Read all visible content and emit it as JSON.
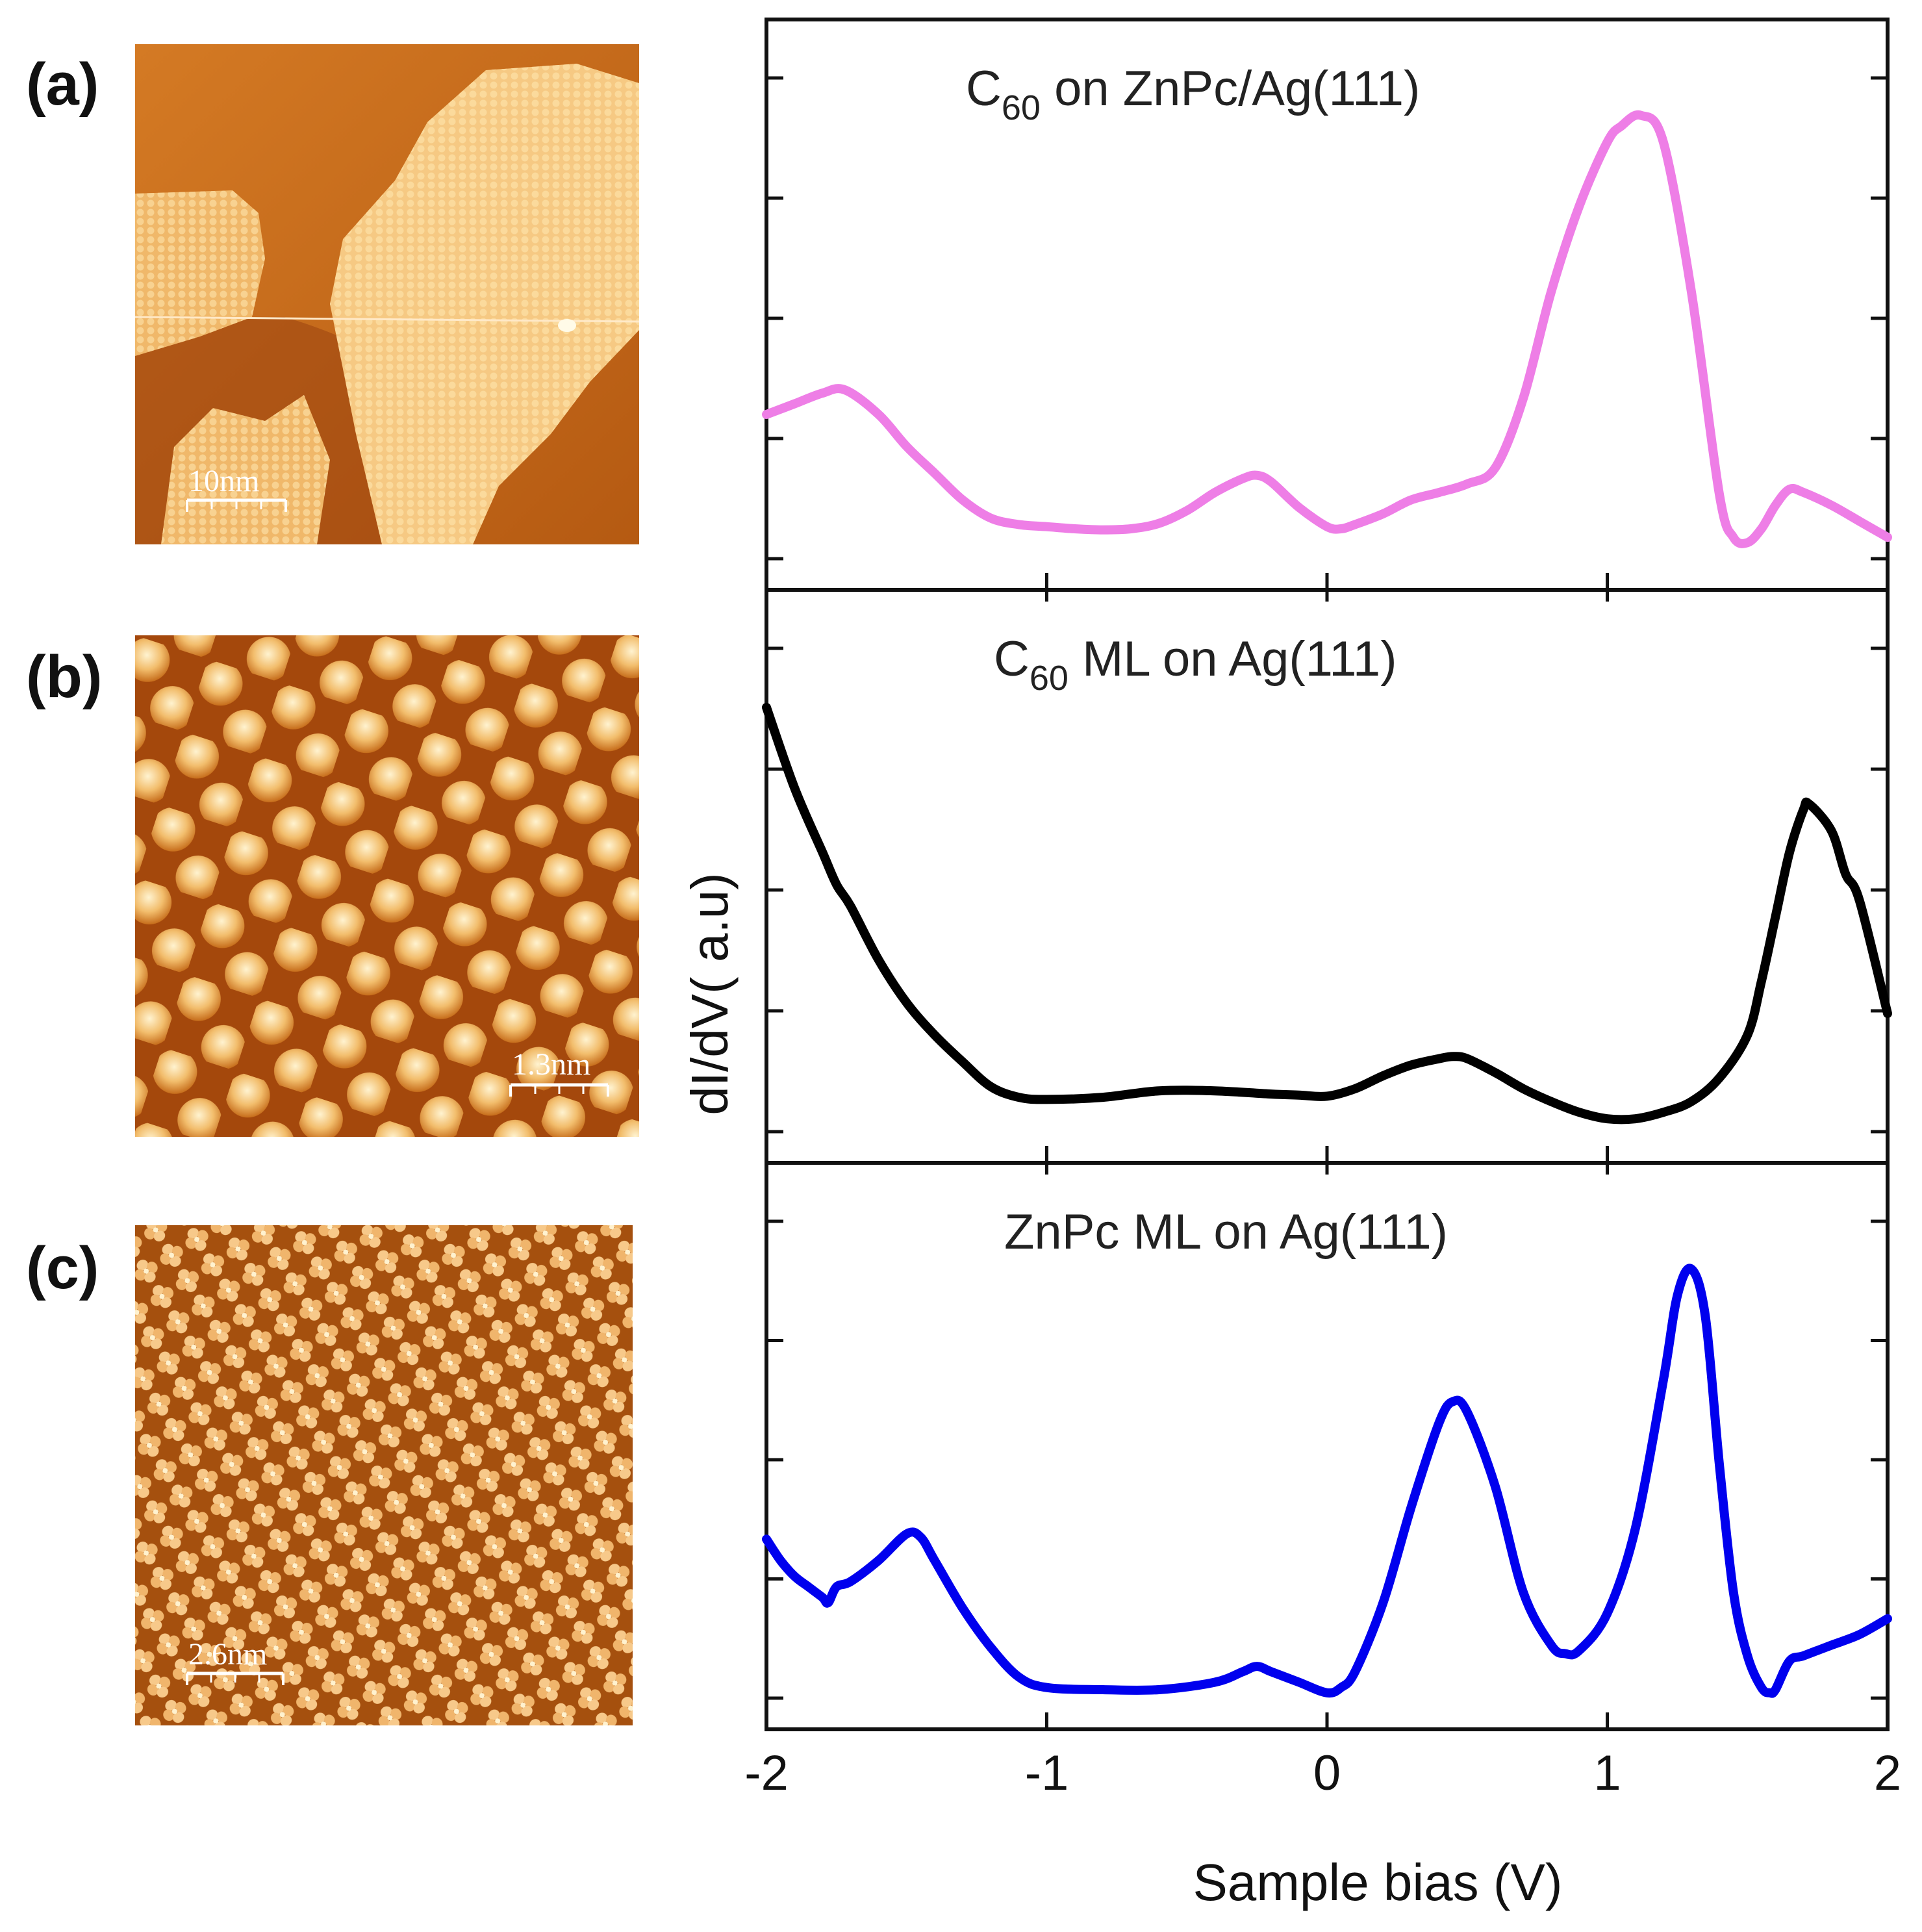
{
  "panels": [
    {
      "label": "(a)",
      "scale_bar": "10nm"
    },
    {
      "label": "(b)",
      "scale_bar": "1.3nm"
    },
    {
      "label": "(c)",
      "scale_bar": "2.6nm"
    }
  ],
  "colors": {
    "stm_dark": "#8a3a08",
    "stm_mid": "#c86a1c",
    "stm_light": "#f4c77e",
    "stm_bright": "#fff0c8"
  },
  "chart_data": {
    "type": "line",
    "xlabel": "Sample bias (V)",
    "ylabel": "dI/dV( a.u)",
    "xlim": [
      -2,
      2
    ],
    "xticks": [
      "-2",
      "-1",
      "0",
      "1",
      "2"
    ],
    "stacked_panels": 3,
    "series": [
      {
        "name": "C60 on ZnPc/Ag(111)",
        "title_main": "C",
        "title_sub": "60",
        "title_rest": " on ZnPc/Ag(111)",
        "color": "#ee7ee6",
        "ylim": [
          0,
          4.5
        ],
        "x": [
          -2.0,
          -1.9,
          -1.8,
          -1.72,
          -1.6,
          -1.5,
          -1.4,
          -1.3,
          -1.2,
          -1.1,
          -1.0,
          -0.9,
          -0.8,
          -0.7,
          -0.6,
          -0.5,
          -0.4,
          -0.3,
          -0.25,
          -0.2,
          -0.1,
          0.0,
          0.05,
          0.1,
          0.2,
          0.3,
          0.4,
          0.5,
          0.6,
          0.7,
          0.8,
          0.9,
          1.0,
          1.05,
          1.12,
          1.2,
          1.3,
          1.4,
          1.45,
          1.5,
          1.55,
          1.6,
          1.65,
          1.7,
          1.8,
          1.9,
          2.0
        ],
        "y": [
          1.35,
          1.45,
          1.55,
          1.58,
          1.35,
          1.05,
          0.8,
          0.55,
          0.38,
          0.32,
          0.3,
          0.28,
          0.27,
          0.28,
          0.33,
          0.45,
          0.62,
          0.75,
          0.78,
          0.72,
          0.48,
          0.3,
          0.28,
          0.32,
          0.42,
          0.55,
          0.62,
          0.7,
          0.85,
          1.5,
          2.5,
          3.3,
          3.9,
          4.05,
          4.15,
          3.9,
          2.5,
          0.6,
          0.2,
          0.15,
          0.28,
          0.5,
          0.65,
          0.62,
          0.5,
          0.35,
          0.2
        ]
      },
      {
        "name": "C60 ML on Ag(111)",
        "title_main": "C",
        "title_sub": "60",
        "title_rest": " ML on Ag(111)",
        "color": "#000000",
        "ylim": [
          0,
          4.5
        ],
        "x": [
          -2.0,
          -1.9,
          -1.8,
          -1.75,
          -1.7,
          -1.6,
          -1.5,
          -1.4,
          -1.3,
          -1.2,
          -1.1,
          -1.0,
          -0.8,
          -0.6,
          -0.4,
          -0.2,
          -0.1,
          0.0,
          0.1,
          0.2,
          0.3,
          0.4,
          0.45,
          0.5,
          0.6,
          0.7,
          0.8,
          0.9,
          1.0,
          1.1,
          1.2,
          1.3,
          1.4,
          1.5,
          1.55,
          1.6,
          1.65,
          1.7,
          1.72,
          1.8,
          1.85,
          1.9,
          2.0
        ],
        "y": [
          3.95,
          3.2,
          2.6,
          2.3,
          2.1,
          1.6,
          1.2,
          0.9,
          0.65,
          0.42,
          0.32,
          0.3,
          0.32,
          0.38,
          0.38,
          0.35,
          0.34,
          0.33,
          0.4,
          0.52,
          0.62,
          0.68,
          0.7,
          0.68,
          0.55,
          0.4,
          0.28,
          0.18,
          0.12,
          0.12,
          0.18,
          0.28,
          0.5,
          0.9,
          1.4,
          2.0,
          2.6,
          3.0,
          3.05,
          2.8,
          2.4,
          2.15,
          1.1
        ]
      },
      {
        "name": "ZnPc ML on Ag(111)",
        "title_main": "ZnPc ML on Ag(111)",
        "title_sub": "",
        "title_rest": "",
        "color": "#0000ee",
        "ylim": [
          0,
          4.5
        ],
        "x": [
          -2.0,
          -1.95,
          -1.9,
          -1.85,
          -1.8,
          -1.78,
          -1.75,
          -1.7,
          -1.6,
          -1.5,
          -1.45,
          -1.4,
          -1.3,
          -1.2,
          -1.1,
          -1.0,
          -0.8,
          -0.6,
          -0.4,
          -0.3,
          -0.25,
          -0.2,
          -0.1,
          0.0,
          0.05,
          0.1,
          0.2,
          0.3,
          0.4,
          0.45,
          0.5,
          0.6,
          0.7,
          0.8,
          0.85,
          0.9,
          1.0,
          1.1,
          1.2,
          1.25,
          1.3,
          1.35,
          1.4,
          1.45,
          1.5,
          1.55,
          1.58,
          1.6,
          1.65,
          1.7,
          1.8,
          1.9,
          2.0
        ],
        "y": [
          1.5,
          1.3,
          1.15,
          1.05,
          0.95,
          0.9,
          1.05,
          1.1,
          1.3,
          1.55,
          1.52,
          1.3,
          0.85,
          0.48,
          0.2,
          0.1,
          0.08,
          0.08,
          0.15,
          0.25,
          0.3,
          0.25,
          0.15,
          0.05,
          0.1,
          0.25,
          0.9,
          1.8,
          2.6,
          2.8,
          2.7,
          2.0,
          1.0,
          0.5,
          0.42,
          0.45,
          0.8,
          1.6,
          3.0,
          3.8,
          4.05,
          3.6,
          2.2,
          1.0,
          0.4,
          0.1,
          0.05,
          0.08,
          0.35,
          0.4,
          0.5,
          0.6,
          0.75
        ]
      }
    ]
  }
}
